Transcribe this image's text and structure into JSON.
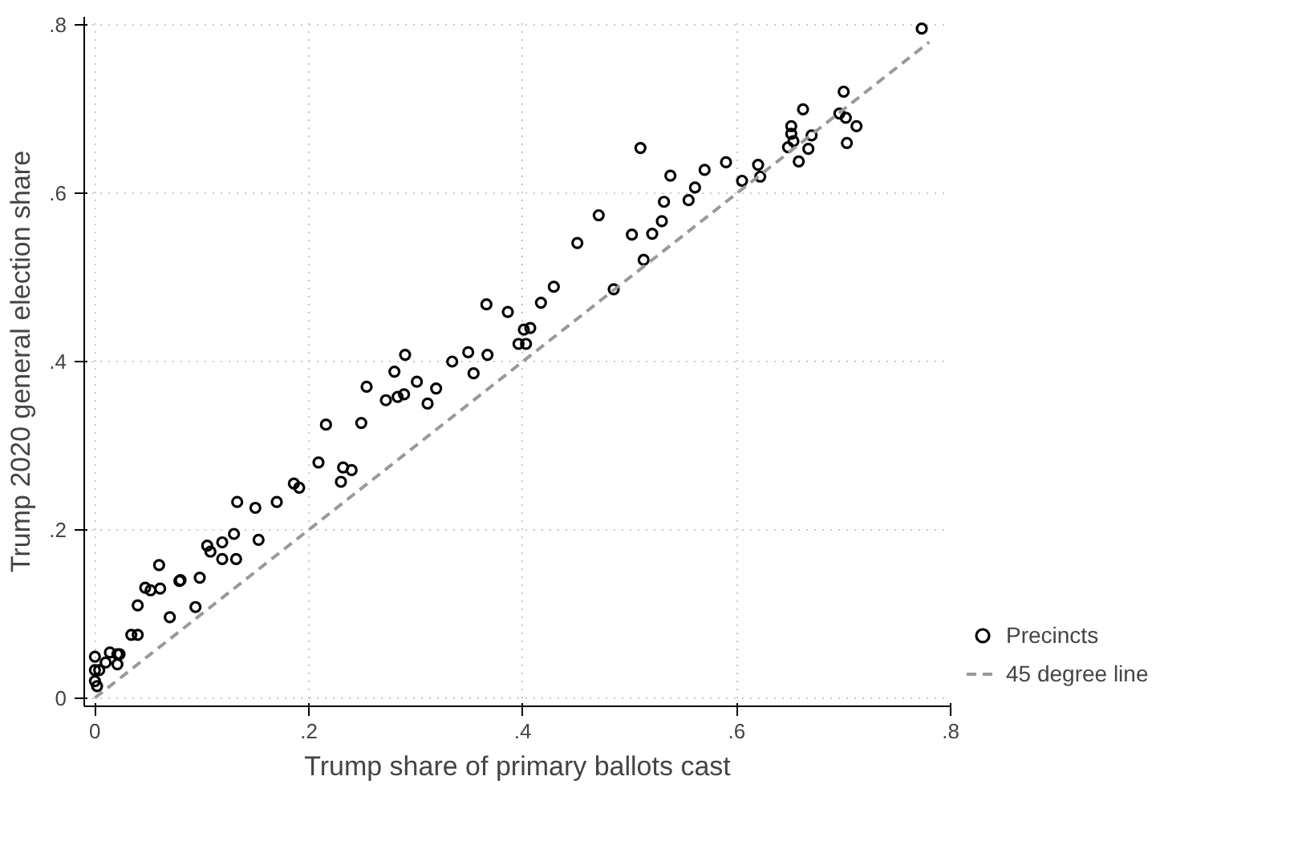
{
  "chart_data": {
    "type": "scatter",
    "xlabel": "Trump share of primary ballots cast",
    "ylabel": "Trump 2020 general election share",
    "xlim": [
      -0.01,
      0.8
    ],
    "ylim": [
      -0.01,
      0.81
    ],
    "xticks": [
      {
        "value": 0,
        "label": "0"
      },
      {
        "value": 0.2,
        "label": ".2"
      },
      {
        "value": 0.4,
        "label": ".4"
      },
      {
        "value": 0.6,
        "label": ".6"
      },
      {
        "value": 0.8,
        "label": ".8"
      }
    ],
    "yticks": [
      {
        "value": 0,
        "label": "0"
      },
      {
        "value": 0.2,
        "label": ".2"
      },
      {
        "value": 0.4,
        "label": ".4"
      },
      {
        "value": 0.6,
        "label": ".6"
      },
      {
        "value": 0.8,
        "label": ".8"
      }
    ],
    "grid": true,
    "legend": "right",
    "marker": "circle",
    "series": [
      {
        "name": "Precincts",
        "color": "#000000",
        "x": [
          0,
          0,
          0.004,
          0,
          0.002,
          0.01,
          0.014,
          0.021,
          0.023,
          0.021,
          0.034,
          0.04,
          0.04,
          0.07,
          0.094,
          0.047,
          0.052,
          0.061,
          0.06,
          0.079,
          0.08,
          0.098,
          0.105,
          0.108,
          0.119,
          0.119,
          0.13,
          0.132,
          0.153,
          0.133,
          0.15,
          0.17,
          0.186,
          0.191,
          0.209,
          0.23,
          0.232,
          0.24,
          0.216,
          0.249,
          0.254,
          0.272,
          0.283,
          0.289,
          0.28,
          0.29,
          0.301,
          0.311,
          0.319,
          0.334,
          0.349,
          0.354,
          0.367,
          0.366,
          0.386,
          0.396,
          0.403,
          0.401,
          0.407,
          0.417,
          0.429,
          0.485,
          0.451,
          0.471,
          0.51,
          0.502,
          0.521,
          0.513,
          0.53,
          0.532,
          0.538,
          0.555,
          0.561,
          0.57,
          0.59,
          0.605,
          0.62,
          0.622,
          0.648,
          0.651,
          0.651,
          0.653,
          0.658,
          0.667,
          0.67,
          0.662,
          0.696,
          0.702,
          0.703,
          0.7,
          0.712,
          0.773
        ],
        "values": [
          0.049,
          0.033,
          0.033,
          0.02,
          0.014,
          0.042,
          0.054,
          0.052,
          0.052,
          0.04,
          0.075,
          0.075,
          0.11,
          0.096,
          0.108,
          0.131,
          0.128,
          0.13,
          0.158,
          0.139,
          0.14,
          0.143,
          0.181,
          0.174,
          0.185,
          0.165,
          0.195,
          0.165,
          0.188,
          0.233,
          0.226,
          0.233,
          0.255,
          0.25,
          0.28,
          0.257,
          0.274,
          0.271,
          0.325,
          0.327,
          0.37,
          0.354,
          0.358,
          0.361,
          0.388,
          0.408,
          0.376,
          0.35,
          0.368,
          0.4,
          0.411,
          0.386,
          0.408,
          0.468,
          0.459,
          0.421,
          0.421,
          0.438,
          0.44,
          0.47,
          0.489,
          0.486,
          0.541,
          0.574,
          0.654,
          0.551,
          0.552,
          0.521,
          0.567,
          0.59,
          0.621,
          0.592,
          0.607,
          0.628,
          0.637,
          0.615,
          0.634,
          0.62,
          0.655,
          0.68,
          0.671,
          0.662,
          0.638,
          0.653,
          0.669,
          0.7,
          0.695,
          0.69,
          0.66,
          0.721,
          0.68,
          0.796
        ]
      },
      {
        "name": "45 degree line",
        "type": "line",
        "color": "#999999",
        "line_style": "dashed",
        "marker": "none",
        "x": [
          0,
          0.78
        ],
        "values": [
          0,
          0.78
        ]
      }
    ]
  }
}
